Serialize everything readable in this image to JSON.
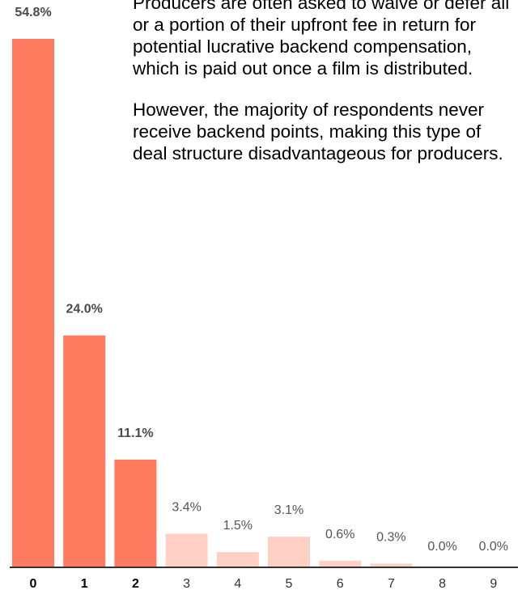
{
  "chart_data": {
    "type": "bar",
    "categories": [
      "0",
      "1",
      "2",
      "3",
      "4",
      "5",
      "6",
      "7",
      "8",
      "9"
    ],
    "values": [
      54.8,
      24.0,
      11.1,
      3.4,
      1.5,
      3.1,
      0.6,
      0.3,
      0.0,
      0.0
    ],
    "value_labels": [
      "54.8%",
      "24.0%",
      "11.1%",
      "3.4%",
      "1.5%",
      "3.1%",
      "0.6%",
      "0.3%",
      "0.0%",
      "0.0%"
    ],
    "emphasized": [
      true,
      true,
      true,
      false,
      false,
      false,
      false,
      false,
      false,
      false
    ],
    "title": "",
    "xlabel": "",
    "ylabel": "",
    "ylim": [
      0,
      54.8
    ],
    "grid": false,
    "annotation": [
      "Producers are often asked to waive or defer all or a portion of their upfront fee in return for potential lucrative backend compensation, which is paid out once a film is distributed.",
      "However, the majority of respondents never receive backend points, making this type of deal structure disadvantageous for producers."
    ]
  },
  "colors": {
    "bar_primary": "#ff7a5f",
    "bar_muted": "#ffd0c4",
    "value_label_primary": "#4a4a4a",
    "value_label_muted": "#555555",
    "tick_primary": "#000000",
    "tick_muted": "#333333",
    "axis": "#333333"
  }
}
